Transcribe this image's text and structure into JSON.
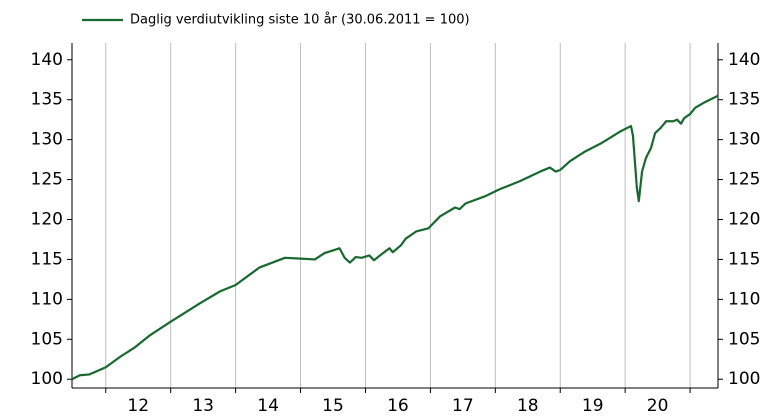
{
  "chart_data": {
    "type": "line",
    "series": [
      {
        "name": "Daglig verdiutvikling siste 10 år (30.06.2011 = 100)",
        "color": "#17692f",
        "x": [
          2011.48,
          2011.6,
          2011.75,
          2012.0,
          2012.22,
          2012.45,
          2012.68,
          2013.0,
          2013.45,
          2013.76,
          2014.0,
          2014.37,
          2014.76,
          2015.0,
          2015.22,
          2015.37,
          2015.53,
          2015.6,
          2015.68,
          2015.76,
          2015.85,
          2015.94,
          2016.06,
          2016.13,
          2016.24,
          2016.37,
          2016.42,
          2016.55,
          2016.62,
          2016.78,
          2016.97,
          2017.15,
          2017.38,
          2017.45,
          2017.54,
          2017.84,
          2018.07,
          2018.38,
          2018.69,
          2018.84,
          2018.93,
          2019.0,
          2019.15,
          2019.38,
          2019.62,
          2019.92,
          2020.09,
          2020.12,
          2020.18,
          2020.21,
          2020.26,
          2020.32,
          2020.4,
          2020.46,
          2020.55,
          2020.63,
          2020.74,
          2020.8,
          2020.86,
          2020.91,
          2021.0,
          2021.08,
          2021.23,
          2021.43
        ],
        "values": [
          100,
          100.5,
          100.6,
          101.5,
          102.8,
          104,
          105.5,
          107.2,
          109.5,
          111,
          111.8,
          114,
          115.2,
          115.1,
          115,
          115.8,
          116.2,
          116.4,
          115.2,
          114.6,
          115.3,
          115.2,
          115.5,
          114.9,
          115.6,
          116.4,
          115.9,
          116.8,
          117.6,
          118.5,
          118.9,
          120.4,
          121.5,
          121.3,
          122,
          122.9,
          123.8,
          124.8,
          126,
          126.5,
          126,
          126.2,
          127.3,
          128.5,
          129.5,
          131,
          131.7,
          130.5,
          124,
          122.3,
          126,
          127.7,
          129,
          130.8,
          131.5,
          132.3,
          132.3,
          132.5,
          132,
          132.7,
          133.2,
          134,
          134.7,
          135.5
        ]
      }
    ],
    "xlim": [
      2011.48,
      2021.43
    ],
    "xgrid": [
      2012,
      2013,
      2014,
      2015,
      2016,
      2017,
      2018,
      2019,
      2020,
      2021
    ],
    "xticks": [
      {
        "value": 2012.5,
        "label": "12"
      },
      {
        "value": 2013.5,
        "label": "13"
      },
      {
        "value": 2014.5,
        "label": "14"
      },
      {
        "value": 2015.5,
        "label": "15"
      },
      {
        "value": 2016.5,
        "label": "16"
      },
      {
        "value": 2017.5,
        "label": "17"
      },
      {
        "value": 2018.5,
        "label": "18"
      },
      {
        "value": 2019.5,
        "label": "19"
      },
      {
        "value": 2020.5,
        "label": "20"
      }
    ],
    "ylim": [
      98.9,
      142.1
    ],
    "yticks": [
      100,
      105,
      110,
      115,
      120,
      125,
      130,
      135,
      140
    ]
  }
}
